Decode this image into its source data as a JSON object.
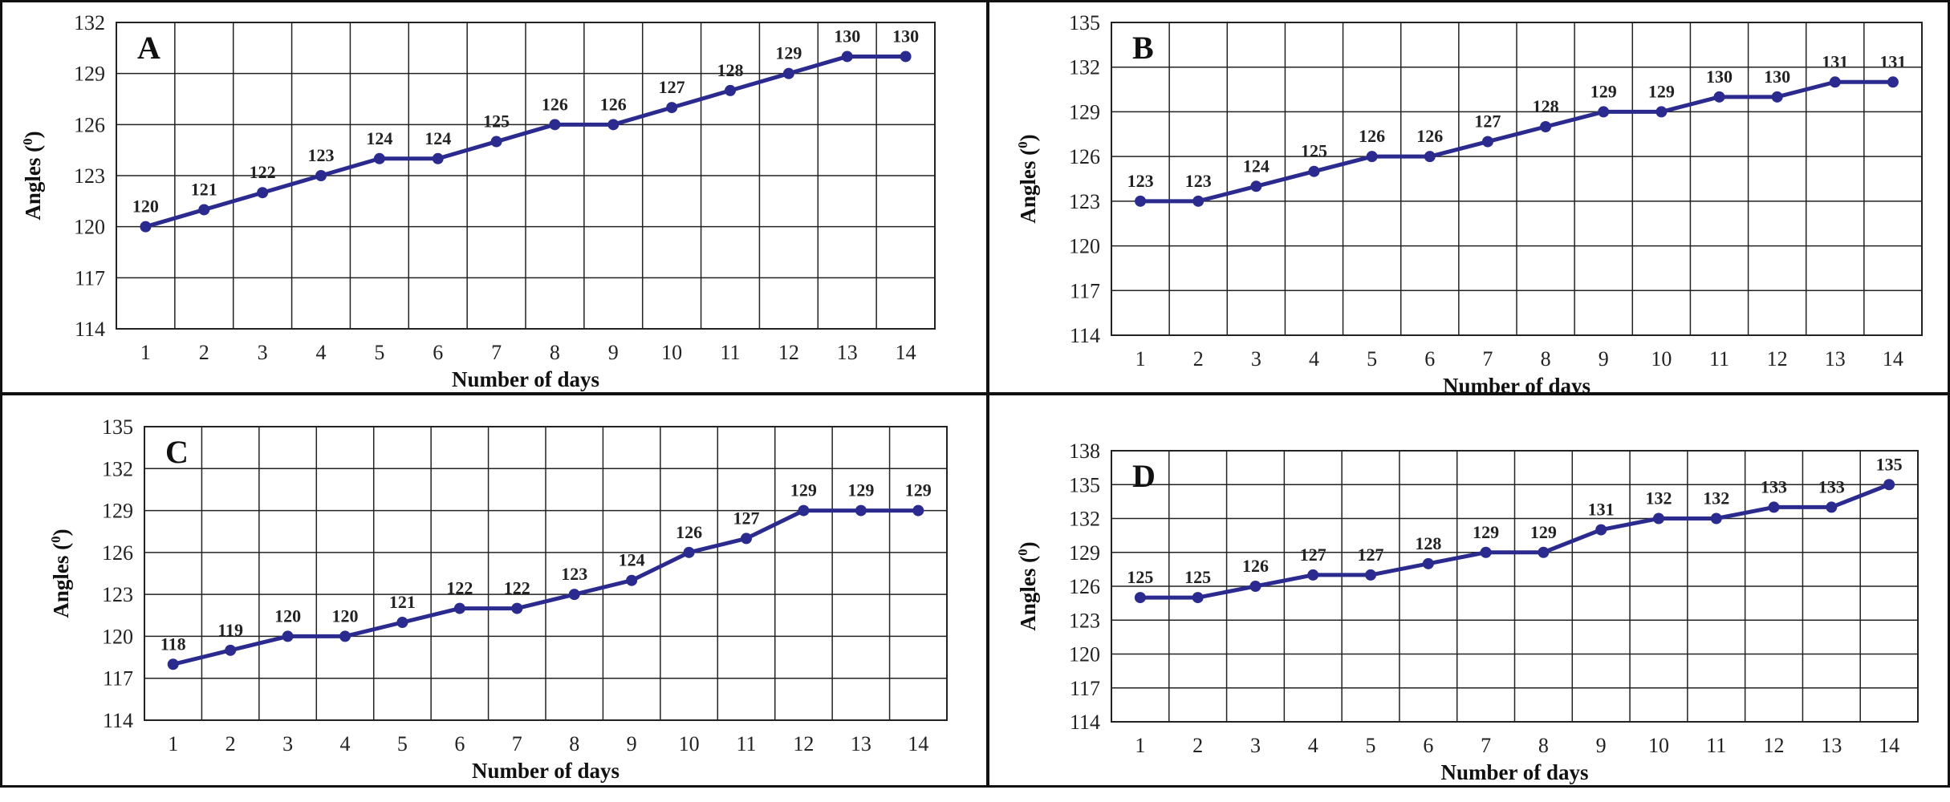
{
  "chart_data": [
    {
      "type": "line",
      "panel": "A",
      "xlabel": "Number of days",
      "ylabel": "Angles (",
      "ylabel_sup": "0",
      "ylabel_end": ")",
      "x": [
        1,
        2,
        3,
        4,
        5,
        6,
        7,
        8,
        9,
        10,
        11,
        12,
        13,
        14
      ],
      "y": [
        120,
        121,
        122,
        123,
        124,
        124,
        125,
        126,
        126,
        127,
        128,
        129,
        130,
        130
      ],
      "ylim": [
        114,
        132
      ],
      "yticks": [
        114,
        117,
        120,
        123,
        126,
        129,
        132
      ],
      "grid": true,
      "line_color": "#2b2b8f"
    },
    {
      "type": "line",
      "panel": "B",
      "xlabel": "Number of days",
      "ylabel": "Angles (",
      "ylabel_sup": "0",
      "ylabel_end": ")",
      "x": [
        1,
        2,
        3,
        4,
        5,
        6,
        7,
        8,
        9,
        10,
        11,
        12,
        13,
        14
      ],
      "y": [
        123,
        123,
        124,
        125,
        126,
        126,
        127,
        128,
        129,
        129,
        130,
        130,
        131,
        131
      ],
      "ylim": [
        114,
        135
      ],
      "yticks": [
        114,
        117,
        120,
        123,
        126,
        129,
        132,
        135
      ],
      "grid": true,
      "line_color": "#2b2b8f"
    },
    {
      "type": "line",
      "panel": "C",
      "xlabel": "Number of days",
      "ylabel": "Angles (",
      "ylabel_sup": "0",
      "ylabel_end": ")",
      "x": [
        1,
        2,
        3,
        4,
        5,
        6,
        7,
        8,
        9,
        10,
        11,
        12,
        13,
        14
      ],
      "y": [
        118,
        119,
        120,
        120,
        121,
        122,
        122,
        123,
        124,
        126,
        127,
        129,
        129,
        129
      ],
      "ylim": [
        114,
        135
      ],
      "yticks": [
        114,
        117,
        120,
        123,
        126,
        129,
        132,
        135
      ],
      "grid": true,
      "line_color": "#2b2b8f"
    },
    {
      "type": "line",
      "panel": "D",
      "xlabel": "Number of days",
      "ylabel": "Angles (",
      "ylabel_sup": "0",
      "ylabel_end": ")",
      "x": [
        1,
        2,
        3,
        4,
        5,
        6,
        7,
        8,
        9,
        10,
        11,
        12,
        13,
        14
      ],
      "y": [
        125,
        125,
        126,
        127,
        127,
        128,
        129,
        129,
        131,
        132,
        132,
        133,
        133,
        135
      ],
      "ylim": [
        114,
        138
      ],
      "yticks": [
        114,
        117,
        120,
        123,
        126,
        129,
        132,
        135,
        138
      ],
      "grid": true,
      "line_color": "#2b2b8f"
    }
  ]
}
